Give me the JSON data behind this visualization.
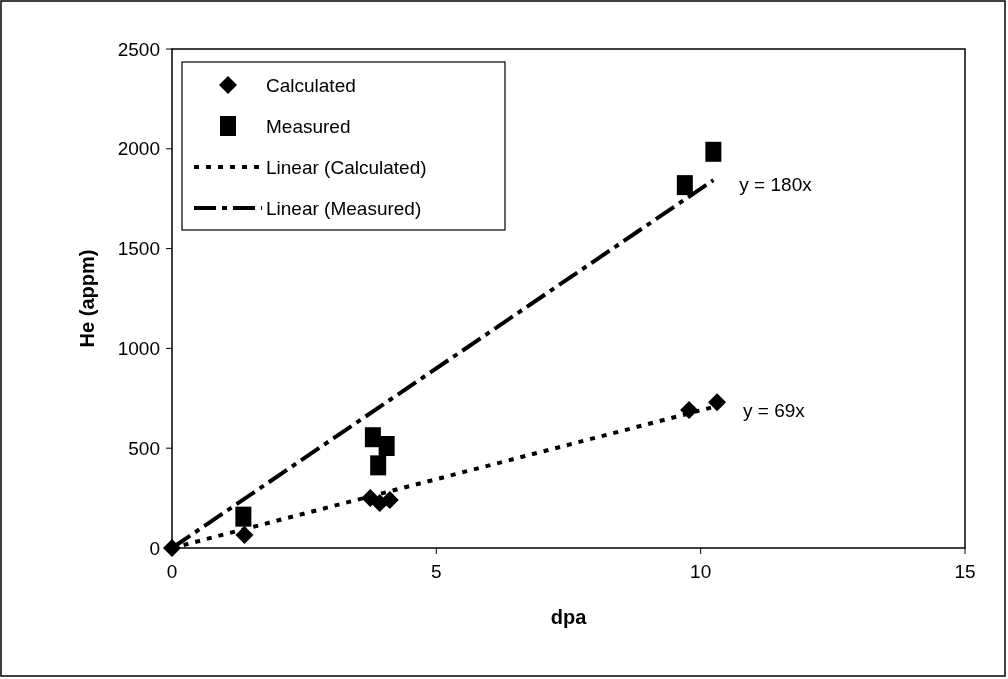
{
  "chart_data": {
    "type": "scatter",
    "xlabel": "dpa",
    "ylabel": "He (appm)",
    "xlim": [
      0,
      15
    ],
    "xticks": [
      0,
      5,
      10,
      15
    ],
    "ylim": [
      0,
      2500
    ],
    "yticks": [
      0,
      500,
      1000,
      1500,
      2000,
      2500
    ],
    "grid": false,
    "legend": "top left",
    "series": [
      {
        "name": "Calculated",
        "marker": "diamond",
        "color": "#000000",
        "x": [
          0,
          1.37,
          3.75,
          3.93,
          4.12,
          9.78,
          10.31
        ],
        "values": [
          0,
          65,
          250,
          225,
          240,
          691,
          730
        ]
      },
      {
        "name": "Measured",
        "marker": "square",
        "color": "#000000",
        "x": [
          1.35,
          3.8,
          4.06,
          3.9,
          9.7,
          10.24
        ],
        "values": [
          157,
          555,
          511,
          414,
          1818,
          1985
        ]
      },
      {
        "name": "Linear (Calculated)",
        "type": "line",
        "marker": "none",
        "line_style": "dotted",
        "color": "#000000",
        "x": [
          0,
          10.31
        ],
        "values": [
          0,
          711
        ]
      },
      {
        "name": "Linear (Measured)",
        "type": "line",
        "marker": "none",
        "line_style": "dashed",
        "color": "#000000",
        "x": [
          0,
          10.24
        ],
        "values": [
          0,
          1843
        ]
      }
    ],
    "annotations": [
      {
        "text": "y = 180x",
        "x": 10.24,
        "y": 1843
      },
      {
        "text": "y = 69x",
        "x": 10.31,
        "y": 711
      }
    ]
  }
}
